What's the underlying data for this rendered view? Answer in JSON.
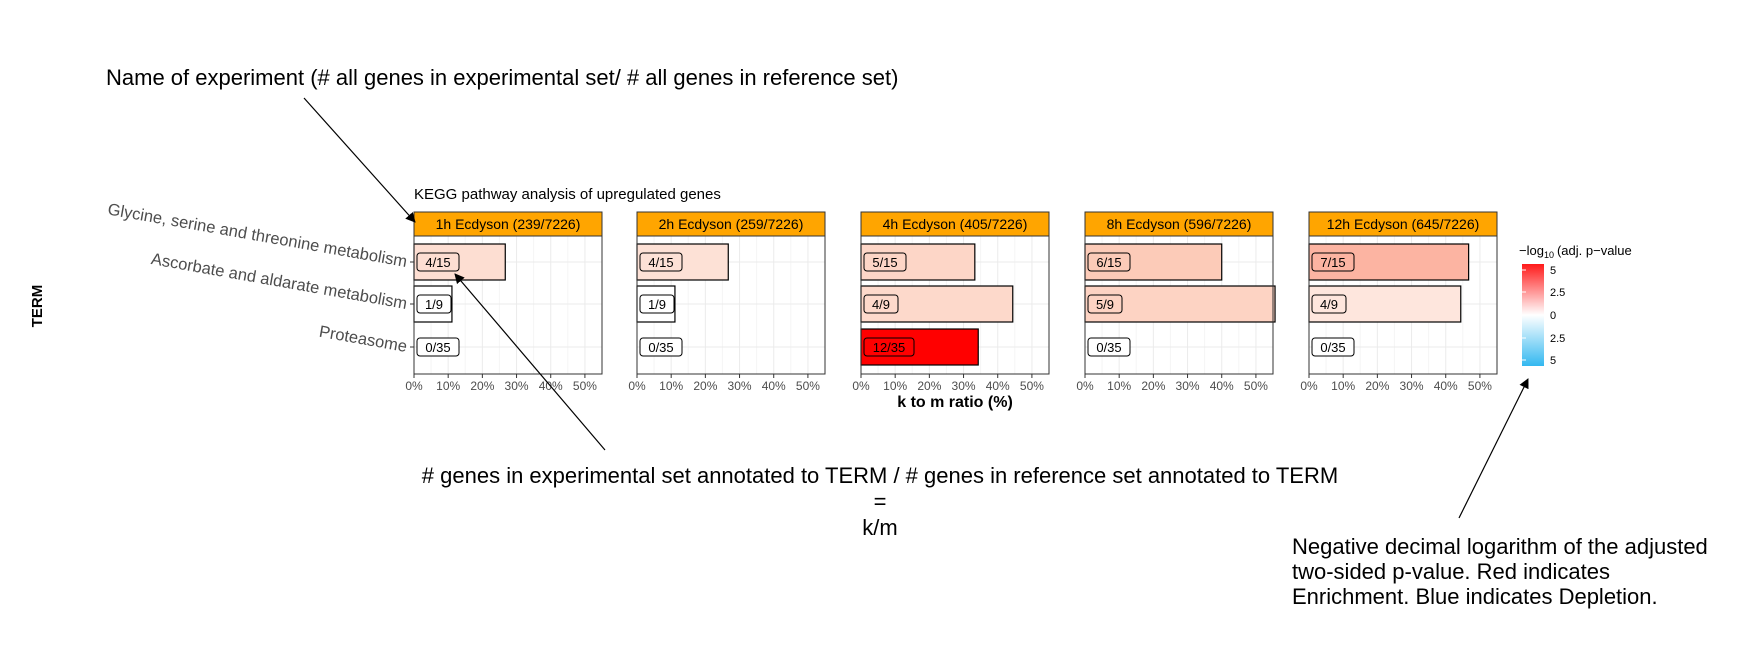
{
  "chart_data": {
    "type": "bar",
    "orientation": "horizontal",
    "title": "KEGG pathway analysis of upregulated genes",
    "xlabel": "k to m ratio (%)",
    "ylabel": "TERM",
    "xlim": [
      0,
      55
    ],
    "xticks": [
      "0%",
      "10%",
      "20%",
      "30%",
      "40%",
      "50%"
    ],
    "grid": true,
    "categories": [
      "Glycine, serine and threonine metabolism",
      "Ascorbate and aldarate metabolism",
      "Proteasome"
    ],
    "panels": [
      {
        "name": "1h Ecdyson (239/7226)",
        "labels": [
          "4/15",
          "1/9",
          "0/35"
        ],
        "values": [
          26.7,
          11.1,
          0
        ],
        "pvalues": [
          1.2,
          0,
          0
        ]
      },
      {
        "name": "2h Ecdyson (259/7226)",
        "labels": [
          "4/15",
          "1/9",
          "0/35"
        ],
        "values": [
          26.7,
          11.1,
          0
        ],
        "pvalues": [
          1.1,
          0,
          0
        ]
      },
      {
        "name": "4h Ecdyson (405/7226)",
        "labels": [
          "5/15",
          "4/9",
          "12/35"
        ],
        "values": [
          33.3,
          44.4,
          34.3
        ],
        "pvalues": [
          1.5,
          1.4,
          5.2
        ]
      },
      {
        "name": "8h Ecdyson (596/7226)",
        "labels": [
          "6/15",
          "5/9",
          "0/35"
        ],
        "values": [
          40.0,
          55.6,
          0
        ],
        "pvalues": [
          1.9,
          1.6,
          0
        ]
      },
      {
        "name": "12h Ecdyson (645/7226)",
        "labels": [
          "7/15",
          "4/9",
          "0/35"
        ],
        "values": [
          46.7,
          44.4,
          0
        ],
        "pvalues": [
          2.3,
          0.9,
          0
        ]
      }
    ],
    "legend": {
      "title_prefix": "−log",
      "title_sub": "10",
      "title_suffix": "(adj. p−value",
      "ticks": [
        "5",
        "2.5",
        "0",
        "2.5",
        "5"
      ],
      "placement": "right"
    },
    "colors": {
      "panel_header": "#ffa500",
      "enrichment": "#ff0000",
      "neutral": "#ffffff",
      "depletion": "#33b8f0"
    }
  },
  "annotations": {
    "name_of_experiment": "Name of experiment (# all genes in experimental set/ # all genes in reference set)",
    "km_line1": "# genes in experimental set annotated to TERM / # genes in reference set annotated to TERM",
    "km_line2": "=",
    "km_line3": "k/m",
    "neg_log": "Negative decimal logarithm of the adjusted two-sided p-value. Red indicates Enrichment. Blue indicates Depletion."
  }
}
